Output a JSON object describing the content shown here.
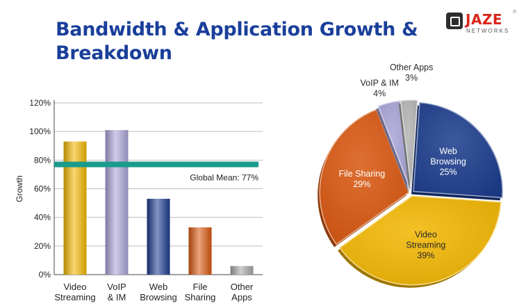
{
  "header": {
    "title_line1": "Bandwidth & Application Growth &",
    "title_line2": "Breakdown"
  },
  "logo": {
    "brand": "JAZE",
    "sub": "NETWORKS",
    "reg": "®"
  },
  "colors": {
    "title": "#1a3f9a",
    "mean_line": "#1a9b8c",
    "video": "#f2b600",
    "voip": "#a8a3d6",
    "web": "#1a3a8c",
    "file": "#d8560e",
    "other": "#a6a6a6"
  },
  "chart_data": [
    {
      "type": "bar",
      "ylabel": "Growth",
      "ylim": [
        0,
        120
      ],
      "yticks": [
        "0%",
        "20%",
        "40%",
        "60%",
        "80%",
        "100%",
        "120%"
      ],
      "categories": [
        [
          "Video",
          "Streaming"
        ],
        [
          "VoIP",
          "& IM"
        ],
        [
          "Web",
          "Browsing"
        ],
        [
          "File",
          "Sharing"
        ],
        [
          "Other",
          "Apps"
        ]
      ],
      "values": [
        93,
        101,
        53,
        33,
        6
      ],
      "mean": {
        "value": 77,
        "label": "Global Mean: 77%"
      }
    },
    {
      "type": "pie",
      "slices": [
        {
          "label": [
            "Web",
            "Browsing"
          ],
          "pct_label": "25%",
          "value": 25,
          "color": "#1a3a8c",
          "text_color": "#ffffff"
        },
        {
          "label": [
            "Video",
            "Streaming"
          ],
          "pct_label": "39%",
          "value": 39,
          "color": "#f2b600",
          "text_color": "#2a2a2a"
        },
        {
          "label": [
            "File Sharing"
          ],
          "pct_label": "29%",
          "value": 29,
          "color": "#d8560e",
          "text_color": "#ffffff"
        },
        {
          "label": [
            "VoIP & IM"
          ],
          "pct_label": "4%",
          "value": 4,
          "color": "#a8a3d6",
          "text_color": "#2a2a2a"
        },
        {
          "label": [
            "Other Apps"
          ],
          "pct_label": "3%",
          "value": 3,
          "color": "#b5b5b5",
          "text_color": "#2a2a2a"
        }
      ]
    }
  ]
}
